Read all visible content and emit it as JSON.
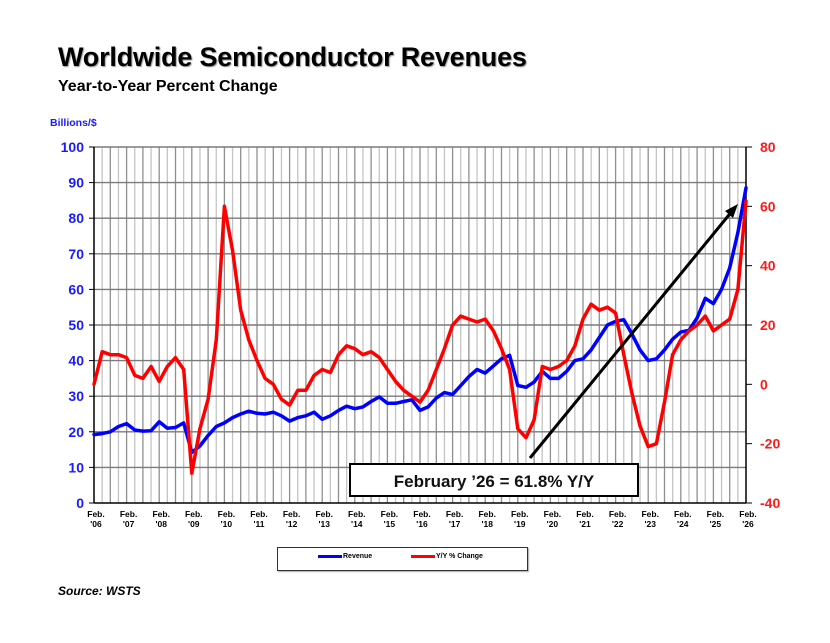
{
  "header": {
    "title": "Worldwide Semiconductor Revenues",
    "subtitle": "Year-to-Year Percent Change",
    "left_axis_unit": "Billions/$"
  },
  "source": "Source: WSTS",
  "annotation": "February ’26 = 61.8% Y/Y",
  "colors": {
    "revenue": "#0000ff",
    "yoy": "#ff0000",
    "left_axis": "#1a1aff",
    "right_axis": "#ff1a1a"
  },
  "chart_data": {
    "type": "line",
    "title": "Worldwide Semiconductor Revenues",
    "subtitle": "Year-to-Year Percent Change",
    "xlabel": "",
    "ylabel": "Billions/$",
    "y2label": "Y/Y % Change",
    "ylim": [
      0,
      100
    ],
    "y2lim": [
      -40,
      80
    ],
    "yticks": [
      "0",
      "10",
      "20",
      "30",
      "40",
      "50",
      "60",
      "70",
      "80",
      "90",
      "100"
    ],
    "y2ticks": [
      "-40",
      "-20",
      "0",
      "20",
      "40",
      "60",
      "80"
    ],
    "grid": true,
    "legend_position": "bottom-center",
    "x_tick_labels": [
      {
        "top": "Feb.",
        "bottom": "'06"
      },
      {
        "top": "Feb.",
        "bottom": "'07"
      },
      {
        "top": "Feb.",
        "bottom": "'08"
      },
      {
        "top": "Feb.",
        "bottom": "'09"
      },
      {
        "top": "Feb.",
        "bottom": "'10"
      },
      {
        "top": "Feb.",
        "bottom": "'11"
      },
      {
        "top": "Feb.",
        "bottom": "'12"
      },
      {
        "top": "Feb.",
        "bottom": "'13"
      },
      {
        "top": "Feb.",
        "bottom": "'14"
      },
      {
        "top": "Feb.",
        "bottom": "'15"
      },
      {
        "top": "Feb.",
        "bottom": "'16"
      },
      {
        "top": "Feb.",
        "bottom": "'17"
      },
      {
        "top": "Feb.",
        "bottom": "'18"
      },
      {
        "top": "Feb.",
        "bottom": "'19"
      },
      {
        "top": "Feb.",
        "bottom": "'20"
      },
      {
        "top": "Feb.",
        "bottom": "'21"
      },
      {
        "top": "Feb.",
        "bottom": "'22"
      },
      {
        "top": "Feb.",
        "bottom": "'23"
      },
      {
        "top": "Feb.",
        "bottom": "'24"
      },
      {
        "top": "Feb.",
        "bottom": "'25"
      },
      {
        "top": "Feb.",
        "bottom": "'26"
      }
    ],
    "x_start": "Feb 2006",
    "x_end": "Feb 2026",
    "x_step": "quarter",
    "series": [
      {
        "name": "Revenue",
        "axis": "left",
        "values": [
          19.2,
          19.5,
          20,
          21.5,
          22.3,
          20.5,
          20.2,
          20.3,
          22.8,
          21,
          21.2,
          22.5,
          14.2,
          16,
          19,
          21.5,
          22.5,
          24,
          25,
          25.8,
          25.2,
          25,
          25.5,
          24.5,
          23,
          24,
          24.5,
          25.5,
          23.5,
          24.5,
          26,
          27.2,
          26.5,
          27,
          28.5,
          29.8,
          28,
          28,
          28.5,
          29,
          26,
          27,
          29.5,
          31,
          30.5,
          33,
          35.5,
          37.5,
          36.5,
          38.5,
          40.5,
          41.5,
          33,
          32.5,
          34,
          37,
          35,
          35,
          37,
          40,
          40.5,
          43,
          46.5,
          50,
          51,
          51.5,
          47.5,
          43,
          40,
          40.5,
          43,
          46,
          48,
          48.5,
          52,
          57.5,
          56,
          60,
          66,
          76,
          88.5
        ]
      },
      {
        "name": "Y/Y % Change",
        "axis": "right",
        "values": [
          0,
          11,
          10,
          10,
          9,
          3,
          2,
          6,
          1,
          6,
          9,
          5,
          -30,
          -15,
          -5,
          15,
          60,
          45,
          25,
          15,
          8,
          2,
          0,
          -5,
          -7,
          -2,
          -2,
          3,
          5,
          4,
          10,
          13,
          12,
          10,
          11,
          9,
          5,
          1,
          -2,
          -4,
          -6,
          -2,
          5,
          12,
          20,
          23,
          22,
          21,
          22,
          18,
          12,
          5,
          -15,
          -18,
          -12,
          6,
          5,
          6,
          8,
          13,
          22,
          27,
          25,
          26,
          24,
          10,
          -3,
          -14,
          -21,
          -20,
          -6,
          10,
          15,
          18,
          20,
          23,
          18,
          20,
          22,
          32,
          61.8
        ]
      }
    ]
  }
}
